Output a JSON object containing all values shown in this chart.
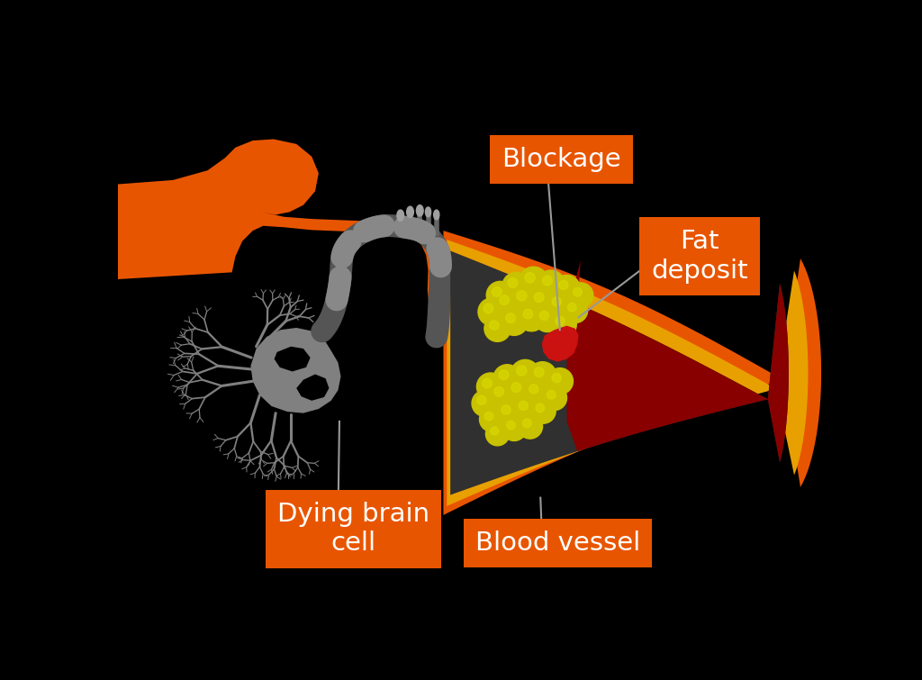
{
  "bg_color": "#000000",
  "orange": "#E85500",
  "orange_gold": "#E8A000",
  "blood_red": "#880000",
  "blood_red_dark": "#550000",
  "red_plaque": "#CC1111",
  "inner_dark": "#303030",
  "neuron_gray": "#808080",
  "neuron_mid": "#666666",
  "neuron_light": "#A0A0A0",
  "axon_dark": "#555555",
  "axon_seg": "#888888",
  "fat_yellow": "#C8C200",
  "fat_bright": "#DADA00",
  "label_bg": "#E85500",
  "label_fg": "#FFFFFF",
  "ann_line": "#999999",
  "title_blockage": "Blockage",
  "title_fat": "Fat\ndeposit",
  "title_dying": "Dying brain\ncell",
  "title_vessel": "Blood vessel",
  "label_fs": 21,
  "fig_w": 10.24,
  "fig_h": 7.55
}
